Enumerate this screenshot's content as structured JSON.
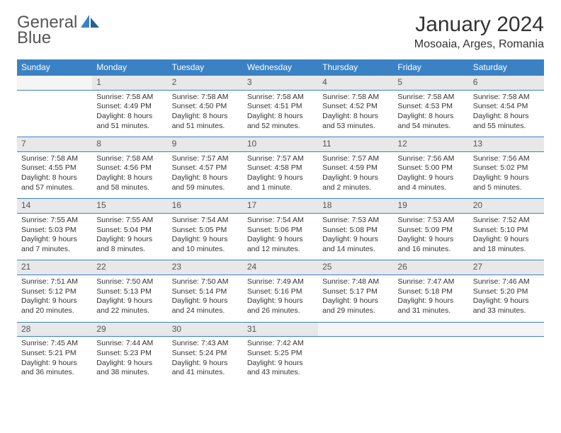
{
  "brand": {
    "word1": "General",
    "word2": "Blue"
  },
  "title": "January 2024",
  "location": "Mosoaia, Arges, Romania",
  "colors": {
    "header_bg": "#3b82c4",
    "header_fg": "#ffffff",
    "daynum_bg": "#e8e8e8",
    "border": "#3b82c4",
    "text": "#333333"
  },
  "weekdays": [
    "Sunday",
    "Monday",
    "Tuesday",
    "Wednesday",
    "Thursday",
    "Friday",
    "Saturday"
  ],
  "grid": [
    [
      null,
      {
        "n": "1",
        "sr": "Sunrise: 7:58 AM",
        "ss": "Sunset: 4:49 PM",
        "d1": "Daylight: 8 hours",
        "d2": "and 51 minutes."
      },
      {
        "n": "2",
        "sr": "Sunrise: 7:58 AM",
        "ss": "Sunset: 4:50 PM",
        "d1": "Daylight: 8 hours",
        "d2": "and 51 minutes."
      },
      {
        "n": "3",
        "sr": "Sunrise: 7:58 AM",
        "ss": "Sunset: 4:51 PM",
        "d1": "Daylight: 8 hours",
        "d2": "and 52 minutes."
      },
      {
        "n": "4",
        "sr": "Sunrise: 7:58 AM",
        "ss": "Sunset: 4:52 PM",
        "d1": "Daylight: 8 hours",
        "d2": "and 53 minutes."
      },
      {
        "n": "5",
        "sr": "Sunrise: 7:58 AM",
        "ss": "Sunset: 4:53 PM",
        "d1": "Daylight: 8 hours",
        "d2": "and 54 minutes."
      },
      {
        "n": "6",
        "sr": "Sunrise: 7:58 AM",
        "ss": "Sunset: 4:54 PM",
        "d1": "Daylight: 8 hours",
        "d2": "and 55 minutes."
      }
    ],
    [
      {
        "n": "7",
        "sr": "Sunrise: 7:58 AM",
        "ss": "Sunset: 4:55 PM",
        "d1": "Daylight: 8 hours",
        "d2": "and 57 minutes."
      },
      {
        "n": "8",
        "sr": "Sunrise: 7:58 AM",
        "ss": "Sunset: 4:56 PM",
        "d1": "Daylight: 8 hours",
        "d2": "and 58 minutes."
      },
      {
        "n": "9",
        "sr": "Sunrise: 7:57 AM",
        "ss": "Sunset: 4:57 PM",
        "d1": "Daylight: 8 hours",
        "d2": "and 59 minutes."
      },
      {
        "n": "10",
        "sr": "Sunrise: 7:57 AM",
        "ss": "Sunset: 4:58 PM",
        "d1": "Daylight: 9 hours",
        "d2": "and 1 minute."
      },
      {
        "n": "11",
        "sr": "Sunrise: 7:57 AM",
        "ss": "Sunset: 4:59 PM",
        "d1": "Daylight: 9 hours",
        "d2": "and 2 minutes."
      },
      {
        "n": "12",
        "sr": "Sunrise: 7:56 AM",
        "ss": "Sunset: 5:00 PM",
        "d1": "Daylight: 9 hours",
        "d2": "and 4 minutes."
      },
      {
        "n": "13",
        "sr": "Sunrise: 7:56 AM",
        "ss": "Sunset: 5:02 PM",
        "d1": "Daylight: 9 hours",
        "d2": "and 5 minutes."
      }
    ],
    [
      {
        "n": "14",
        "sr": "Sunrise: 7:55 AM",
        "ss": "Sunset: 5:03 PM",
        "d1": "Daylight: 9 hours",
        "d2": "and 7 minutes."
      },
      {
        "n": "15",
        "sr": "Sunrise: 7:55 AM",
        "ss": "Sunset: 5:04 PM",
        "d1": "Daylight: 9 hours",
        "d2": "and 8 minutes."
      },
      {
        "n": "16",
        "sr": "Sunrise: 7:54 AM",
        "ss": "Sunset: 5:05 PM",
        "d1": "Daylight: 9 hours",
        "d2": "and 10 minutes."
      },
      {
        "n": "17",
        "sr": "Sunrise: 7:54 AM",
        "ss": "Sunset: 5:06 PM",
        "d1": "Daylight: 9 hours",
        "d2": "and 12 minutes."
      },
      {
        "n": "18",
        "sr": "Sunrise: 7:53 AM",
        "ss": "Sunset: 5:08 PM",
        "d1": "Daylight: 9 hours",
        "d2": "and 14 minutes."
      },
      {
        "n": "19",
        "sr": "Sunrise: 7:53 AM",
        "ss": "Sunset: 5:09 PM",
        "d1": "Daylight: 9 hours",
        "d2": "and 16 minutes."
      },
      {
        "n": "20",
        "sr": "Sunrise: 7:52 AM",
        "ss": "Sunset: 5:10 PM",
        "d1": "Daylight: 9 hours",
        "d2": "and 18 minutes."
      }
    ],
    [
      {
        "n": "21",
        "sr": "Sunrise: 7:51 AM",
        "ss": "Sunset: 5:12 PM",
        "d1": "Daylight: 9 hours",
        "d2": "and 20 minutes."
      },
      {
        "n": "22",
        "sr": "Sunrise: 7:50 AM",
        "ss": "Sunset: 5:13 PM",
        "d1": "Daylight: 9 hours",
        "d2": "and 22 minutes."
      },
      {
        "n": "23",
        "sr": "Sunrise: 7:50 AM",
        "ss": "Sunset: 5:14 PM",
        "d1": "Daylight: 9 hours",
        "d2": "and 24 minutes."
      },
      {
        "n": "24",
        "sr": "Sunrise: 7:49 AM",
        "ss": "Sunset: 5:16 PM",
        "d1": "Daylight: 9 hours",
        "d2": "and 26 minutes."
      },
      {
        "n": "25",
        "sr": "Sunrise: 7:48 AM",
        "ss": "Sunset: 5:17 PM",
        "d1": "Daylight: 9 hours",
        "d2": "and 29 minutes."
      },
      {
        "n": "26",
        "sr": "Sunrise: 7:47 AM",
        "ss": "Sunset: 5:18 PM",
        "d1": "Daylight: 9 hours",
        "d2": "and 31 minutes."
      },
      {
        "n": "27",
        "sr": "Sunrise: 7:46 AM",
        "ss": "Sunset: 5:20 PM",
        "d1": "Daylight: 9 hours",
        "d2": "and 33 minutes."
      }
    ],
    [
      {
        "n": "28",
        "sr": "Sunrise: 7:45 AM",
        "ss": "Sunset: 5:21 PM",
        "d1": "Daylight: 9 hours",
        "d2": "and 36 minutes."
      },
      {
        "n": "29",
        "sr": "Sunrise: 7:44 AM",
        "ss": "Sunset: 5:23 PM",
        "d1": "Daylight: 9 hours",
        "d2": "and 38 minutes."
      },
      {
        "n": "30",
        "sr": "Sunrise: 7:43 AM",
        "ss": "Sunset: 5:24 PM",
        "d1": "Daylight: 9 hours",
        "d2": "and 41 minutes."
      },
      {
        "n": "31",
        "sr": "Sunrise: 7:42 AM",
        "ss": "Sunset: 5:25 PM",
        "d1": "Daylight: 9 hours",
        "d2": "and 43 minutes."
      },
      null,
      null,
      null
    ]
  ]
}
